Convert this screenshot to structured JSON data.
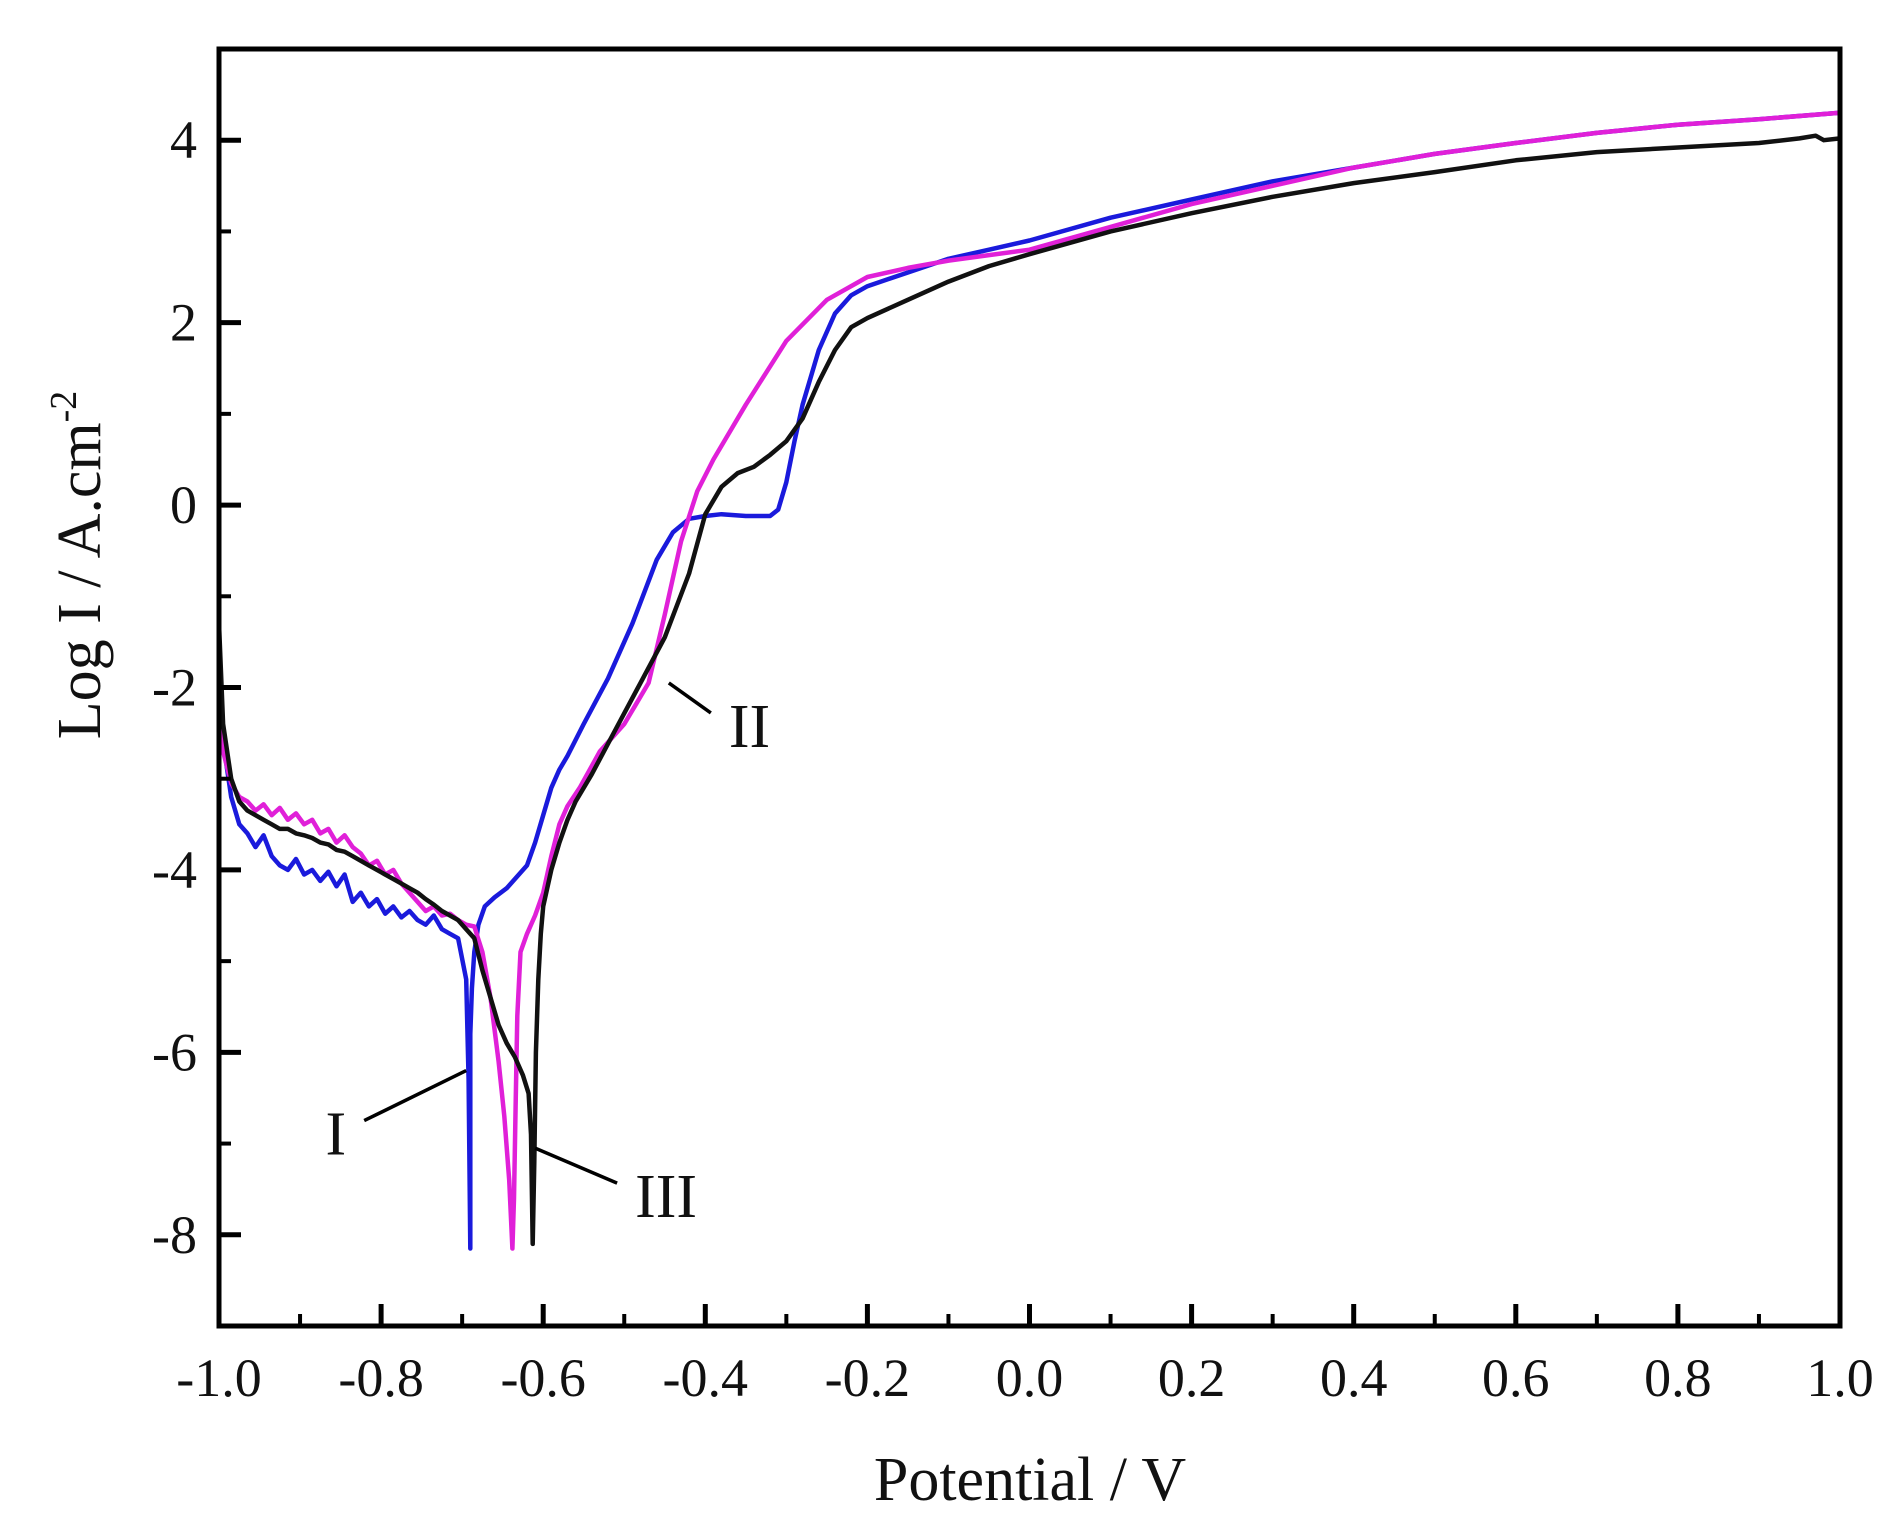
{
  "chart_data": {
    "type": "line",
    "title": "",
    "xlabel": "Potential / V",
    "ylabel": "Log I / A.cm",
    "ylabel_superscript": "-2",
    "xlim": [
      -1.0,
      1.0
    ],
    "ylim": [
      -9.0,
      5.0
    ],
    "x_ticks": [
      -1.0,
      -0.8,
      -0.6,
      -0.4,
      -0.2,
      0.0,
      0.2,
      0.4,
      0.6,
      0.8,
      1.0
    ],
    "x_tick_labels": [
      "-1.0",
      "-0.8",
      "-0.6",
      "-0.4",
      "-0.2",
      "0.0",
      "0.2",
      "0.4",
      "0.6",
      "0.8",
      "1.0"
    ],
    "y_ticks": [
      -8,
      -6,
      -4,
      -2,
      0,
      2,
      4
    ],
    "y_tick_labels": [
      "-8",
      "-6",
      "-4",
      "-2",
      "0",
      "2",
      "4"
    ],
    "grid": false,
    "legend": "none",
    "series": [
      {
        "name": "I",
        "color": "#1a1adc",
        "x": [
          -1.0,
          -0.995,
          -0.985,
          -0.975,
          -0.965,
          -0.955,
          -0.945,
          -0.935,
          -0.925,
          -0.915,
          -0.905,
          -0.895,
          -0.885,
          -0.875,
          -0.865,
          -0.855,
          -0.845,
          -0.835,
          -0.825,
          -0.815,
          -0.805,
          -0.795,
          -0.785,
          -0.775,
          -0.765,
          -0.755,
          -0.745,
          -0.735,
          -0.725,
          -0.715,
          -0.705,
          -0.695,
          -0.692,
          -0.69,
          -0.69,
          -0.688,
          -0.685,
          -0.68,
          -0.672,
          -0.66,
          -0.645,
          -0.63,
          -0.62,
          -0.61,
          -0.6,
          -0.59,
          -0.58,
          -0.57,
          -0.55,
          -0.52,
          -0.49,
          -0.46,
          -0.44,
          -0.42,
          -0.4,
          -0.38,
          -0.35,
          -0.32,
          -0.31,
          -0.3,
          -0.29,
          -0.28,
          -0.27,
          -0.26,
          -0.24,
          -0.22,
          -0.2,
          -0.15,
          -0.1,
          -0.05,
          0.0,
          0.1,
          0.2,
          0.3,
          0.4,
          0.5,
          0.6,
          0.7,
          0.8,
          0.9,
          1.0
        ],
        "y": [
          -1.8,
          -2.6,
          -3.2,
          -3.5,
          -3.6,
          -3.75,
          -3.62,
          -3.85,
          -3.95,
          -4.0,
          -3.88,
          -4.05,
          -4.0,
          -4.12,
          -4.02,
          -4.18,
          -4.05,
          -4.35,
          -4.25,
          -4.4,
          -4.32,
          -4.48,
          -4.4,
          -4.52,
          -4.45,
          -4.55,
          -4.6,
          -4.5,
          -4.65,
          -4.7,
          -4.75,
          -5.2,
          -6.3,
          -8.15,
          -5.8,
          -5.3,
          -4.9,
          -4.6,
          -4.4,
          -4.3,
          -4.2,
          -4.05,
          -3.95,
          -3.7,
          -3.4,
          -3.1,
          -2.9,
          -2.75,
          -2.4,
          -1.9,
          -1.3,
          -0.6,
          -0.3,
          -0.15,
          -0.12,
          -0.1,
          -0.12,
          -0.12,
          -0.05,
          0.25,
          0.7,
          1.1,
          1.4,
          1.7,
          2.1,
          2.3,
          2.4,
          2.55,
          2.7,
          2.8,
          2.9,
          3.15,
          3.35,
          3.55,
          3.7,
          3.85,
          3.97,
          4.08,
          4.17,
          4.23,
          4.3
        ]
      },
      {
        "name": "II",
        "color": "#e020d8",
        "x": [
          -1.0,
          -0.995,
          -0.985,
          -0.975,
          -0.965,
          -0.955,
          -0.945,
          -0.935,
          -0.925,
          -0.915,
          -0.905,
          -0.895,
          -0.885,
          -0.875,
          -0.865,
          -0.855,
          -0.845,
          -0.835,
          -0.825,
          -0.815,
          -0.805,
          -0.795,
          -0.785,
          -0.775,
          -0.765,
          -0.755,
          -0.745,
          -0.735,
          -0.725,
          -0.715,
          -0.705,
          -0.695,
          -0.685,
          -0.675,
          -0.665,
          -0.655,
          -0.648,
          -0.642,
          -0.638,
          -0.636,
          -0.634,
          -0.632,
          -0.628,
          -0.62,
          -0.61,
          -0.6,
          -0.59,
          -0.58,
          -0.57,
          -0.555,
          -0.53,
          -0.5,
          -0.47,
          -0.45,
          -0.43,
          -0.41,
          -0.39,
          -0.37,
          -0.35,
          -0.3,
          -0.25,
          -0.2,
          -0.15,
          -0.1,
          -0.05,
          0.0,
          0.1,
          0.2,
          0.3,
          0.4,
          0.5,
          0.6,
          0.7,
          0.8,
          0.9,
          1.0
        ],
        "y": [
          -2.1,
          -2.7,
          -3.05,
          -3.2,
          -3.25,
          -3.35,
          -3.28,
          -3.4,
          -3.32,
          -3.45,
          -3.38,
          -3.5,
          -3.45,
          -3.6,
          -3.55,
          -3.7,
          -3.62,
          -3.75,
          -3.82,
          -3.95,
          -3.9,
          -4.05,
          -4.0,
          -4.15,
          -4.25,
          -4.35,
          -4.45,
          -4.4,
          -4.5,
          -4.48,
          -4.55,
          -4.6,
          -4.62,
          -4.9,
          -5.4,
          -6.1,
          -6.7,
          -7.4,
          -8.15,
          -7.6,
          -6.6,
          -5.6,
          -4.9,
          -4.7,
          -4.5,
          -4.25,
          -3.85,
          -3.5,
          -3.3,
          -3.1,
          -2.7,
          -2.4,
          -1.95,
          -1.2,
          -0.4,
          0.15,
          0.5,
          0.8,
          1.1,
          1.8,
          2.25,
          2.5,
          2.6,
          2.68,
          2.74,
          2.8,
          3.05,
          3.3,
          3.5,
          3.7,
          3.85,
          3.97,
          4.08,
          4.17,
          4.23,
          4.3
        ]
      },
      {
        "name": "III",
        "color": "#111111",
        "x": [
          -1.0,
          -0.995,
          -0.985,
          -0.975,
          -0.965,
          -0.955,
          -0.945,
          -0.935,
          -0.925,
          -0.915,
          -0.905,
          -0.895,
          -0.885,
          -0.875,
          -0.865,
          -0.855,
          -0.845,
          -0.835,
          -0.825,
          -0.815,
          -0.805,
          -0.795,
          -0.785,
          -0.775,
          -0.765,
          -0.755,
          -0.745,
          -0.735,
          -0.725,
          -0.715,
          -0.705,
          -0.695,
          -0.685,
          -0.675,
          -0.665,
          -0.655,
          -0.645,
          -0.635,
          -0.625,
          -0.618,
          -0.615,
          -0.613,
          -0.611,
          -0.609,
          -0.606,
          -0.603,
          -0.6,
          -0.59,
          -0.58,
          -0.57,
          -0.56,
          -0.54,
          -0.51,
          -0.48,
          -0.45,
          -0.42,
          -0.4,
          -0.38,
          -0.36,
          -0.34,
          -0.32,
          -0.3,
          -0.28,
          -0.26,
          -0.24,
          -0.22,
          -0.2,
          -0.15,
          -0.1,
          -0.05,
          0.0,
          0.1,
          0.2,
          0.3,
          0.4,
          0.5,
          0.6,
          0.7,
          0.8,
          0.9,
          0.95,
          0.97,
          0.98,
          1.0
        ],
        "y": [
          -1.3,
          -2.4,
          -3.0,
          -3.25,
          -3.35,
          -3.4,
          -3.45,
          -3.5,
          -3.55,
          -3.55,
          -3.6,
          -3.62,
          -3.65,
          -3.7,
          -3.72,
          -3.78,
          -3.8,
          -3.85,
          -3.9,
          -3.95,
          -4.0,
          -4.05,
          -4.1,
          -4.15,
          -4.2,
          -4.25,
          -4.32,
          -4.38,
          -4.45,
          -4.5,
          -4.55,
          -4.65,
          -4.75,
          -5.1,
          -5.4,
          -5.7,
          -5.9,
          -6.05,
          -6.25,
          -6.45,
          -6.9,
          -8.1,
          -7.2,
          -6.0,
          -5.2,
          -4.7,
          -4.4,
          -4.0,
          -3.7,
          -3.45,
          -3.25,
          -2.95,
          -2.45,
          -1.95,
          -1.45,
          -0.75,
          -0.1,
          0.2,
          0.35,
          0.42,
          0.55,
          0.7,
          0.95,
          1.35,
          1.7,
          1.95,
          2.05,
          2.25,
          2.45,
          2.62,
          2.75,
          3.0,
          3.2,
          3.38,
          3.53,
          3.65,
          3.78,
          3.87,
          3.92,
          3.97,
          4.02,
          4.05,
          4.0,
          4.02
        ]
      }
    ],
    "annotations": [
      {
        "label": "I",
        "series": "I",
        "x": -0.695,
        "y": -6.2
      },
      {
        "label": "II",
        "series": "II",
        "x": -0.445,
        "y": -1.95
      },
      {
        "label": "III",
        "series": "III",
        "x": -0.61,
        "y": -7.05
      }
    ]
  }
}
